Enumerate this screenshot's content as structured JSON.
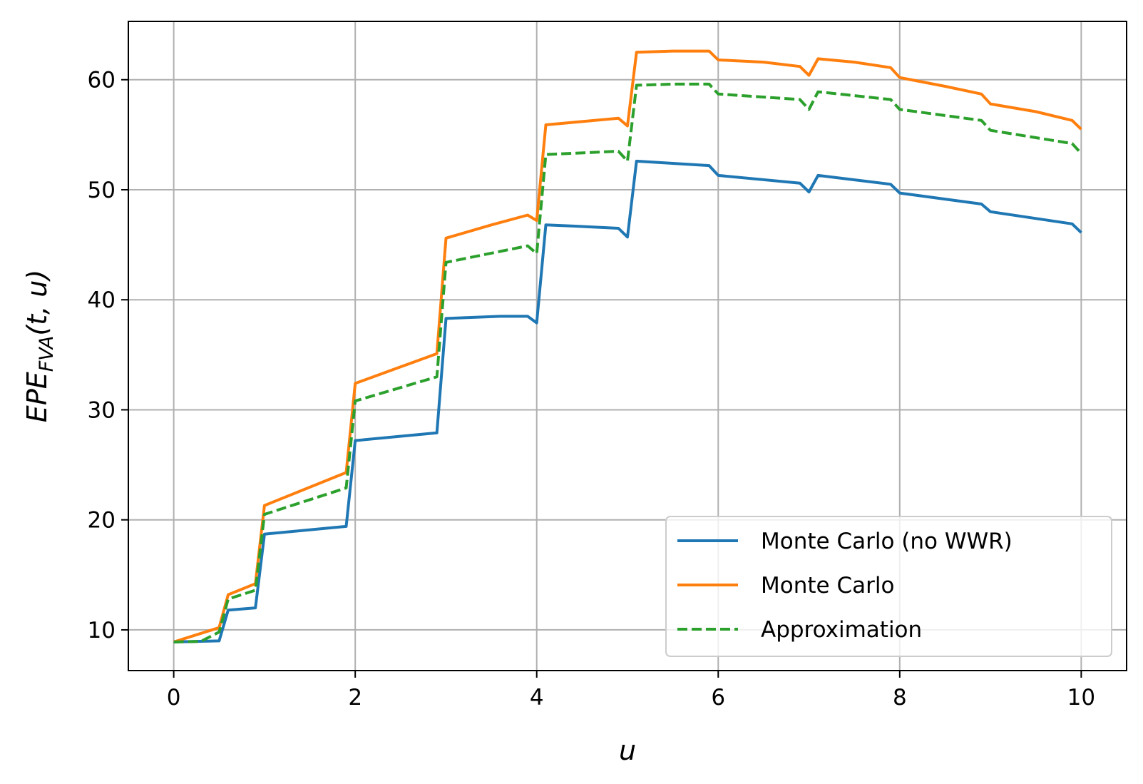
{
  "chart_data": {
    "type": "line",
    "title": "",
    "xlabel": "u",
    "ylabel": {
      "base": "EPE",
      "subscript": "FVA",
      "args": "(t, u)"
    },
    "xlim": [
      -0.5,
      10.5
    ],
    "ylim": [
      6.3,
      65.3
    ],
    "xticks": [
      0,
      2,
      4,
      6,
      8,
      10
    ],
    "yticks": [
      10,
      20,
      30,
      40,
      50,
      60
    ],
    "grid": true,
    "legend_position": "lower-right",
    "series": [
      {
        "name": "Monte Carlo (no WWR)",
        "color": "#1f77b4",
        "dash": "solid",
        "points": [
          [
            0,
            8.9
          ],
          [
            0.5,
            9.0
          ],
          [
            0.6,
            11.8
          ],
          [
            0.9,
            12.0
          ],
          [
            1.0,
            18.7
          ],
          [
            1.9,
            19.4
          ],
          [
            2.0,
            27.2
          ],
          [
            2.9,
            27.9
          ],
          [
            3.0,
            38.3
          ],
          [
            3.6,
            38.5
          ],
          [
            3.9,
            38.5
          ],
          [
            4.0,
            37.9
          ],
          [
            4.1,
            46.8
          ],
          [
            4.4,
            46.7
          ],
          [
            4.9,
            46.5
          ],
          [
            5.0,
            45.7
          ],
          [
            5.1,
            52.6
          ],
          [
            5.9,
            52.2
          ],
          [
            6.0,
            51.3
          ],
          [
            6.9,
            50.6
          ],
          [
            7.0,
            49.8
          ],
          [
            7.1,
            51.3
          ],
          [
            7.9,
            50.5
          ],
          [
            8.0,
            49.7
          ],
          [
            8.9,
            48.7
          ],
          [
            9.0,
            48.0
          ],
          [
            9.9,
            46.9
          ],
          [
            10.0,
            46.1
          ]
        ]
      },
      {
        "name": "Monte Carlo",
        "color": "#ff7f0e",
        "dash": "solid",
        "points": [
          [
            0,
            8.9
          ],
          [
            0.5,
            10.2
          ],
          [
            0.6,
            13.2
          ],
          [
            0.9,
            14.2
          ],
          [
            1.0,
            21.3
          ],
          [
            1.9,
            24.3
          ],
          [
            2.0,
            32.4
          ],
          [
            2.5,
            33.9
          ],
          [
            2.9,
            35.1
          ],
          [
            3.0,
            45.6
          ],
          [
            3.5,
            46.8
          ],
          [
            3.9,
            47.7
          ],
          [
            4.0,
            47.2
          ],
          [
            4.1,
            55.9
          ],
          [
            4.5,
            56.2
          ],
          [
            4.9,
            56.5
          ],
          [
            5.0,
            55.8
          ],
          [
            5.1,
            62.5
          ],
          [
            5.5,
            62.6
          ],
          [
            5.9,
            62.6
          ],
          [
            6.0,
            61.8
          ],
          [
            6.5,
            61.6
          ],
          [
            6.9,
            61.2
          ],
          [
            7.0,
            60.4
          ],
          [
            7.1,
            61.9
          ],
          [
            7.5,
            61.6
          ],
          [
            7.9,
            61.1
          ],
          [
            8.0,
            60.2
          ],
          [
            8.5,
            59.4
          ],
          [
            8.9,
            58.7
          ],
          [
            9.0,
            57.8
          ],
          [
            9.5,
            57.1
          ],
          [
            9.9,
            56.3
          ],
          [
            10.0,
            55.5
          ]
        ]
      },
      {
        "name": "Approximation",
        "color": "#2ca02c",
        "dash": "dashed",
        "points": [
          [
            0,
            8.9
          ],
          [
            0.3,
            8.95
          ],
          [
            0.5,
            9.8
          ],
          [
            0.6,
            12.8
          ],
          [
            0.9,
            13.6
          ],
          [
            1.0,
            20.5
          ],
          [
            1.9,
            22.9
          ],
          [
            2.0,
            30.8
          ],
          [
            2.9,
            33.0
          ],
          [
            3.0,
            43.4
          ],
          [
            3.9,
            44.9
          ],
          [
            4.0,
            44.2
          ],
          [
            4.1,
            53.2
          ],
          [
            4.9,
            53.5
          ],
          [
            5.0,
            52.6
          ],
          [
            5.1,
            59.5
          ],
          [
            5.5,
            59.6
          ],
          [
            5.9,
            59.6
          ],
          [
            6.0,
            58.7
          ],
          [
            6.9,
            58.2
          ],
          [
            7.0,
            57.3
          ],
          [
            7.1,
            58.9
          ],
          [
            7.9,
            58.2
          ],
          [
            8.0,
            57.3
          ],
          [
            8.9,
            56.3
          ],
          [
            9.0,
            55.4
          ],
          [
            9.9,
            54.2
          ],
          [
            10.0,
            53.3
          ]
        ]
      }
    ]
  }
}
